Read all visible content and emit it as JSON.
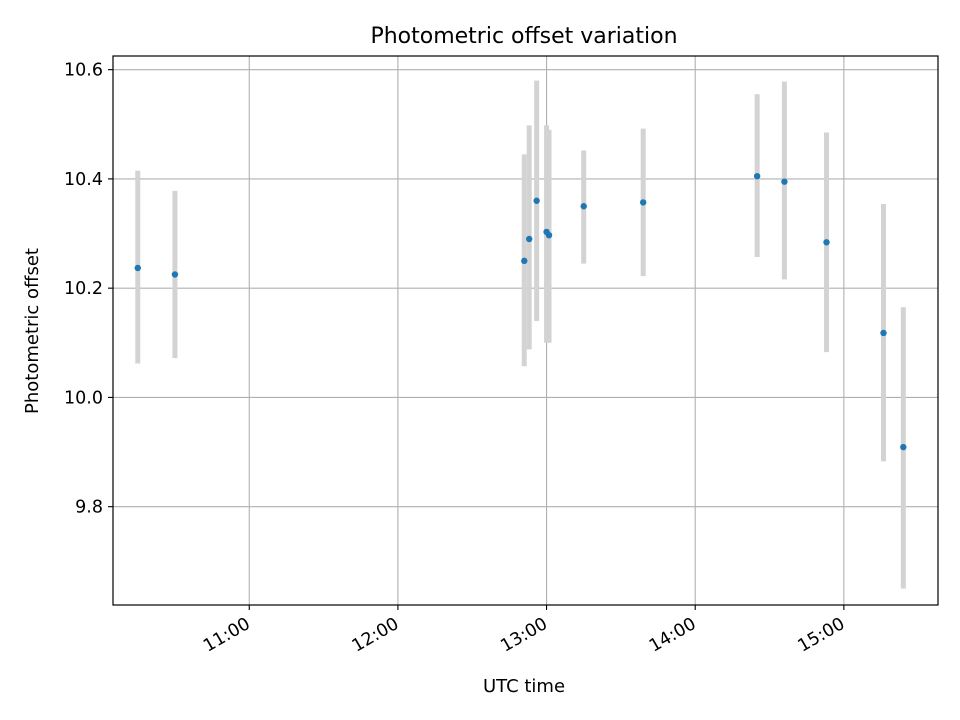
{
  "chart_data": {
    "type": "scatter",
    "title": "Photometric offset variation",
    "xlabel": "UTC time",
    "ylabel": "Photometric offset",
    "x_ticks": [
      "11:00",
      "12:00",
      "13:00",
      "14:00",
      "15:00"
    ],
    "y_ticks": [
      "9.8",
      "10.0",
      "10.2",
      "10.4",
      "10.6"
    ],
    "xlim": [
      "10:05",
      "15:38"
    ],
    "ylim": [
      9.62,
      10.625
    ],
    "grid": true,
    "x": [
      "10:15",
      "10:30",
      "12:51",
      "12:53",
      "12:56",
      "13:00",
      "13:01",
      "13:15",
      "13:39",
      "14:25",
      "14:36",
      "14:53",
      "15:16",
      "15:24"
    ],
    "y": [
      10.237,
      10.225,
      10.25,
      10.29,
      10.36,
      10.303,
      10.297,
      10.35,
      10.357,
      10.405,
      10.395,
      10.284,
      10.118,
      9.909
    ],
    "y_err_low": [
      10.062,
      10.072,
      10.057,
      10.088,
      10.14,
      10.1,
      10.1,
      10.245,
      10.222,
      10.257,
      10.216,
      10.083,
      9.883,
      9.65
    ],
    "y_err_high": [
      10.415,
      10.378,
      10.445,
      10.498,
      10.58,
      10.498,
      10.49,
      10.452,
      10.492,
      10.555,
      10.578,
      10.485,
      10.354,
      10.165
    ],
    "colors": {
      "point": "#1f77b4",
      "errorbar": "#d3d3d3",
      "grid": "#b0b0b0",
      "axes": "#000000"
    }
  }
}
